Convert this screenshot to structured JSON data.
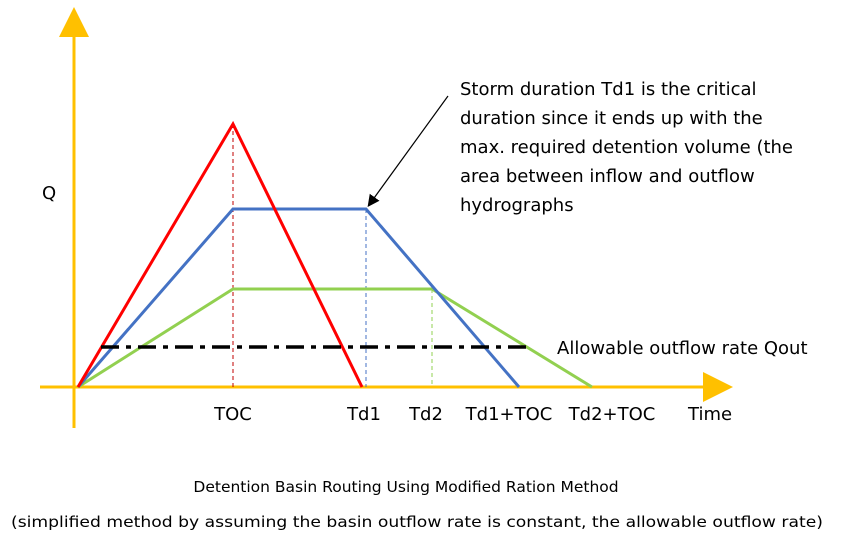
{
  "axes": {
    "y_label": "Q",
    "x_label": "Time",
    "ticks": [
      "TOC",
      "Td1",
      "Td2",
      "Td1+TOC",
      "Td2+TOC"
    ]
  },
  "annotation": {
    "lines": [
      "Storm duration Td1 is the critical",
      "duration since it ends up with the",
      "max. required detention volume (the",
      "area between inflow and outflow",
      "hydrographs"
    ]
  },
  "outflow_label": "Allowable outflow rate Qout",
  "caption": {
    "title": "Detention Basin Routing Using Modified Ration Method",
    "subtitle": "(simplified method by assuming the basin outflow rate is constant, the allowable outflow rate)"
  },
  "colors": {
    "axis": "#FFC000",
    "red_hydrograph": "#FF0000",
    "blue_hydrograph": "#4472C4",
    "green_hydrograph": "#92D050",
    "outflow_line": "#000000",
    "toc_guide": "#C00000",
    "td1_guide": "#4472C4",
    "td2_guide": "#92D050"
  }
}
